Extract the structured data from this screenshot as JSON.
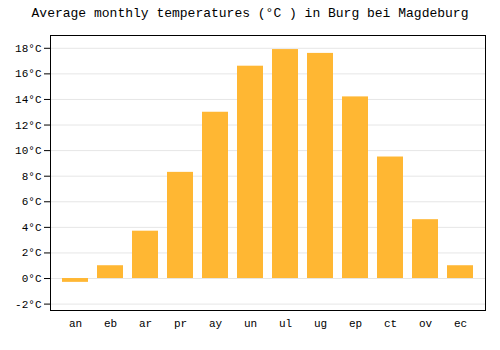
{
  "chart_data": {
    "type": "bar",
    "title": "Average monthly temperatures (°C ) in Burg bei Magdeburg",
    "categories": [
      "an",
      "eb",
      "ar",
      "pr",
      "ay",
      "un",
      "ul",
      "ug",
      "ep",
      "ct",
      "ov",
      "ec"
    ],
    "values": [
      -0.3,
      1.0,
      3.7,
      8.3,
      13.0,
      16.6,
      17.9,
      17.6,
      14.2,
      9.5,
      4.6,
      1.0
    ],
    "color": "#FFB733",
    "ylim": [
      -2.5,
      19.0
    ],
    "yticks": [
      {
        "value": -2,
        "label": "-2°C"
      },
      {
        "value": 0,
        "label": "0°C"
      },
      {
        "value": 2,
        "label": "2°C"
      },
      {
        "value": 4,
        "label": "4°C"
      },
      {
        "value": 6,
        "label": "6°C"
      },
      {
        "value": 8,
        "label": "8°C"
      },
      {
        "value": 10,
        "label": "10°C"
      },
      {
        "value": 12,
        "label": "12°C"
      },
      {
        "value": 14,
        "label": "14°C"
      },
      {
        "value": 16,
        "label": "16°C"
      },
      {
        "value": 18,
        "label": "18°C"
      }
    ],
    "grid": true
  }
}
